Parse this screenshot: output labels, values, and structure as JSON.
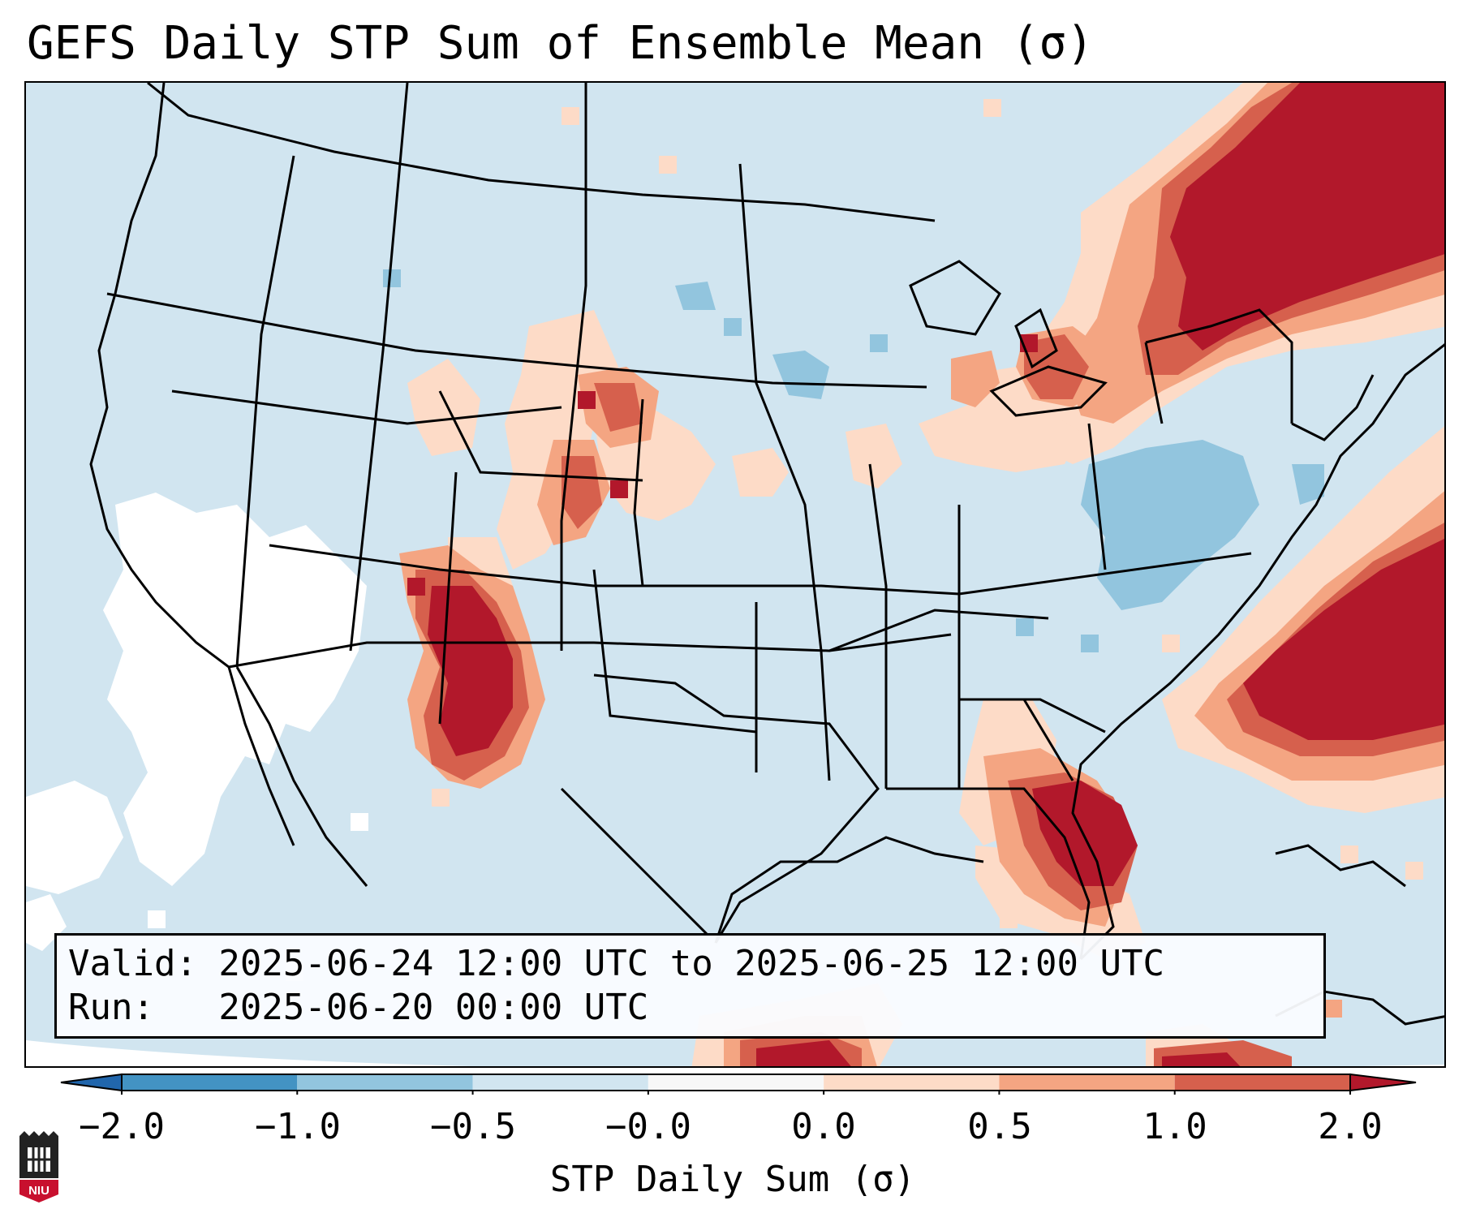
{
  "title": "GEFS Daily STP Sum of Ensemble Mean (σ)",
  "info": {
    "valid_line": "Valid: 2025-06-24 12:00 UTC to 2025-06-25 12:00 UTC",
    "run_line": "Run:   2025-06-20 00:00 UTC"
  },
  "colorbar": {
    "label": "STP Daily Sum (σ)",
    "ticks": [
      "−2.0",
      "−1.0",
      "−0.5",
      "−0.0",
      "0.0",
      "0.5",
      "1.0",
      "2.0"
    ],
    "bins": [
      {
        "range": "< -2.0",
        "color": "#2166ac"
      },
      {
        "range": "-2.0 to -1.0",
        "color": "#4393c3"
      },
      {
        "range": "-1.0 to -0.5",
        "color": "#92c5de"
      },
      {
        "range": "-0.5 to -0.0",
        "color": "#d1e5f0"
      },
      {
        "range": "-0.0 to 0.0",
        "color": "#f7f7f7"
      },
      {
        "range": "0.0 to 0.5",
        "color": "#fddbc7"
      },
      {
        "range": "0.5 to 1.0",
        "color": "#f4a582"
      },
      {
        "range": "1.0 to 2.0",
        "color": "#d6604d"
      },
      {
        "range": "> 2.0",
        "color": "#b2182b"
      }
    ]
  },
  "logo": {
    "text": "NIU",
    "icon": "niu-logo-icon"
  },
  "colors": {
    "background_anomaly": "#d1e5f0",
    "near_zero": "#ffffff",
    "positive_light": "#fddbc7",
    "positive_mid": "#f4a582",
    "positive_high": "#d6604d",
    "positive_max": "#b2182b",
    "negative_light": "#92c5de"
  }
}
